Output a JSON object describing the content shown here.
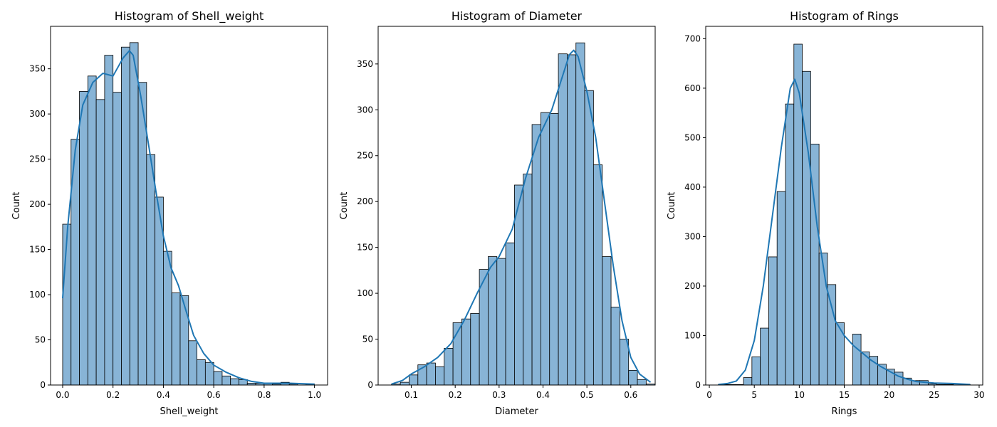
{
  "chart_data": [
    {
      "type": "bar",
      "title": "Histogram of Shell_weight",
      "xlabel": "Shell_weight",
      "ylabel": "Count",
      "xlim": [
        -0.048,
        1.052
      ],
      "ylim": [
        0,
        397
      ],
      "xticks": [
        0.0,
        0.2,
        0.4,
        0.6,
        0.8,
        1.0
      ],
      "xtick_labels": [
        "0.0",
        "0.2",
        "0.4",
        "0.6",
        "0.8",
        "1.0"
      ],
      "yticks": [
        0,
        50,
        100,
        150,
        200,
        250,
        300,
        350
      ],
      "bin_start": 0.0,
      "bin_width": 0.03333,
      "values": [
        178,
        272,
        325,
        342,
        316,
        365,
        324,
        374,
        379,
        335,
        255,
        208,
        148,
        102,
        99,
        49,
        28,
        25,
        15,
        10,
        7,
        6,
        2,
        2,
        2,
        1,
        3,
        1,
        0,
        1
      ],
      "kde": [
        [
          0.0,
          96
        ],
        [
          0.02,
          175
        ],
        [
          0.05,
          260
        ],
        [
          0.08,
          310
        ],
        [
          0.12,
          335
        ],
        [
          0.16,
          345
        ],
        [
          0.2,
          342
        ],
        [
          0.24,
          362
        ],
        [
          0.265,
          370
        ],
        [
          0.28,
          365
        ],
        [
          0.31,
          320
        ],
        [
          0.34,
          268
        ],
        [
          0.37,
          215
        ],
        [
          0.4,
          165
        ],
        [
          0.43,
          130
        ],
        [
          0.46,
          110
        ],
        [
          0.49,
          82
        ],
        [
          0.52,
          55
        ],
        [
          0.56,
          35
        ],
        [
          0.6,
          22
        ],
        [
          0.65,
          14
        ],
        [
          0.7,
          8
        ],
        [
          0.75,
          4
        ],
        [
          0.8,
          2
        ],
        [
          0.9,
          2
        ],
        [
          1.0,
          1
        ]
      ],
      "grid": false
    },
    {
      "type": "bar",
      "title": "Histogram of Diameter",
      "xlabel": "Diameter",
      "ylabel": "Count",
      "xlim": [
        0.0245,
        0.6555
      ],
      "ylim": [
        0,
        391
      ],
      "xticks": [
        0.1,
        0.2,
        0.3,
        0.4,
        0.5,
        0.6
      ],
      "xtick_labels": [
        "0.1",
        "0.2",
        "0.3",
        "0.4",
        "0.5",
        "0.6"
      ],
      "yticks": [
        0,
        50,
        100,
        150,
        200,
        250,
        300,
        350
      ],
      "bin_start": 0.055,
      "bin_width": 0.02,
      "values": [
        1,
        3,
        11,
        22,
        24,
        20,
        40,
        68,
        72,
        78,
        126,
        140,
        138,
        155,
        218,
        230,
        284,
        297,
        296,
        361,
        360,
        373,
        321,
        240,
        140,
        85,
        50,
        16,
        6,
        1
      ],
      "kde": [
        [
          0.055,
          1
        ],
        [
          0.08,
          5
        ],
        [
          0.1,
          12
        ],
        [
          0.13,
          20
        ],
        [
          0.16,
          30
        ],
        [
          0.19,
          45
        ],
        [
          0.22,
          70
        ],
        [
          0.25,
          100
        ],
        [
          0.28,
          128
        ],
        [
          0.3,
          140
        ],
        [
          0.33,
          170
        ],
        [
          0.36,
          225
        ],
        [
          0.39,
          270
        ],
        [
          0.42,
          300
        ],
        [
          0.44,
          330
        ],
        [
          0.46,
          360
        ],
        [
          0.47,
          365
        ],
        [
          0.48,
          358
        ],
        [
          0.5,
          320
        ],
        [
          0.52,
          270
        ],
        [
          0.54,
          200
        ],
        [
          0.56,
          130
        ],
        [
          0.58,
          70
        ],
        [
          0.6,
          30
        ],
        [
          0.62,
          12
        ],
        [
          0.645,
          3
        ]
      ],
      "grid": false
    },
    {
      "type": "bar",
      "title": "Histogram of Rings",
      "xlabel": "Rings",
      "ylabel": "Count",
      "xlim": [
        -0.4,
        30.4
      ],
      "ylim": [
        0,
        725
      ],
      "xticks": [
        0,
        5,
        10,
        15,
        20,
        25,
        30
      ],
      "xtick_labels": [
        "0",
        "5",
        "10",
        "15",
        "20",
        "25",
        "30"
      ],
      "yticks": [
        0,
        100,
        200,
        300,
        400,
        500,
        600,
        700
      ],
      "bin_start": 1,
      "bin_width": 0.9333,
      "values": [
        1,
        1,
        1,
        15,
        57,
        115,
        259,
        391,
        568,
        689,
        634,
        487,
        267,
        203,
        126,
        0,
        103,
        67,
        58,
        42,
        32,
        26,
        14,
        9,
        9,
        2,
        1,
        1,
        2,
        1
      ],
      "kde": [
        [
          1,
          1
        ],
        [
          2,
          3
        ],
        [
          3,
          8
        ],
        [
          4,
          30
        ],
        [
          5,
          90
        ],
        [
          6,
          200
        ],
        [
          7,
          340
        ],
        [
          8,
          480
        ],
        [
          9,
          600
        ],
        [
          9.5,
          618
        ],
        [
          10,
          590
        ],
        [
          11,
          470
        ],
        [
          12,
          320
        ],
        [
          13,
          200
        ],
        [
          14,
          130
        ],
        [
          15,
          100
        ],
        [
          16,
          80
        ],
        [
          17,
          65
        ],
        [
          18,
          50
        ],
        [
          19,
          38
        ],
        [
          20,
          28
        ],
        [
          21,
          18
        ],
        [
          22,
          12
        ],
        [
          23,
          7
        ],
        [
          25,
          4
        ],
        [
          27,
          3
        ],
        [
          29,
          1
        ]
      ],
      "grid": false
    }
  ],
  "colors": {
    "bar_fill": "#88b4d6",
    "bar_edge": "#000000",
    "kde_line": "#1f77b4",
    "axis": "#000000"
  }
}
